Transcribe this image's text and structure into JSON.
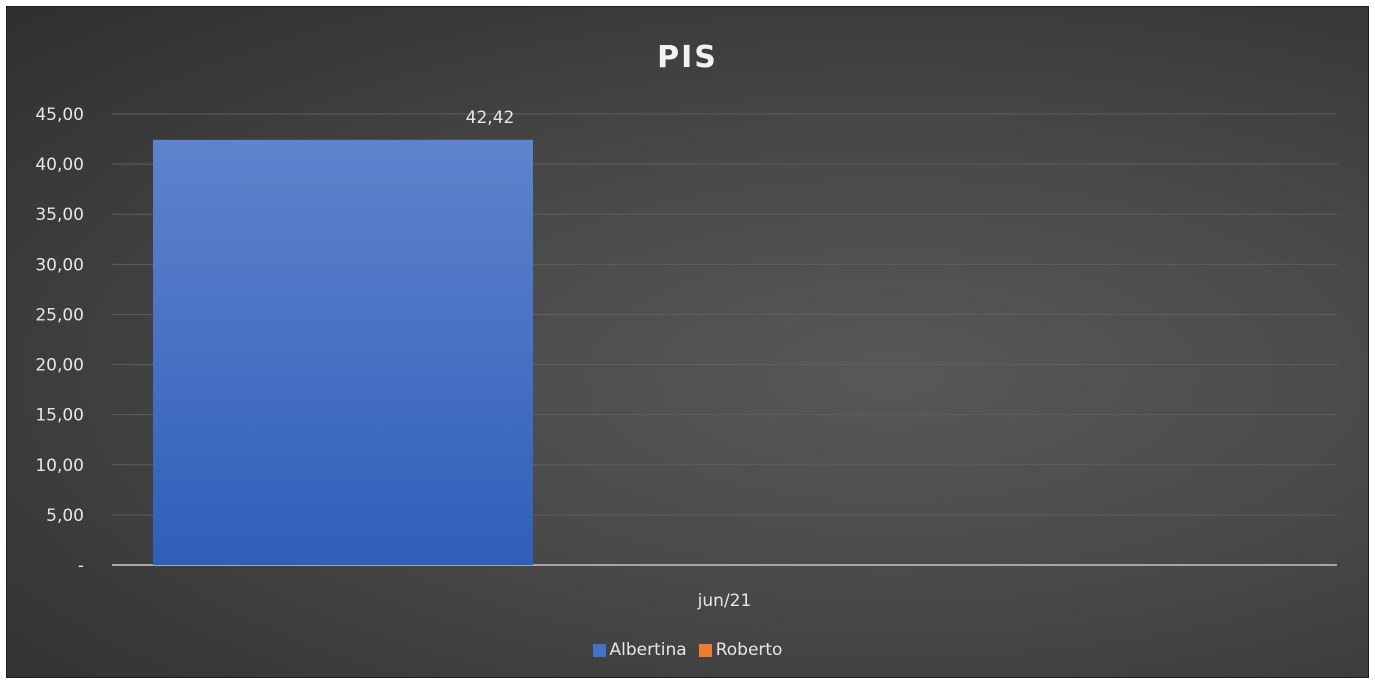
{
  "chart_data": {
    "type": "bar",
    "title": "PIS",
    "categories": [
      "jun/21"
    ],
    "series": [
      {
        "name": "Albertina",
        "values": [
          42.42
        ],
        "color": "#4472c4"
      },
      {
        "name": "Roberto",
        "values": [
          null
        ],
        "color": "#ed7d31"
      }
    ],
    "data_labels": [
      "42,42"
    ],
    "y_ticks": [
      "-",
      "5,00",
      "10,00",
      "15,00",
      "20,00",
      "25,00",
      "30,00",
      "35,00",
      "40,00",
      "45,00"
    ],
    "ylim": [
      0,
      45
    ],
    "grid": true,
    "legend_position": "bottom"
  }
}
